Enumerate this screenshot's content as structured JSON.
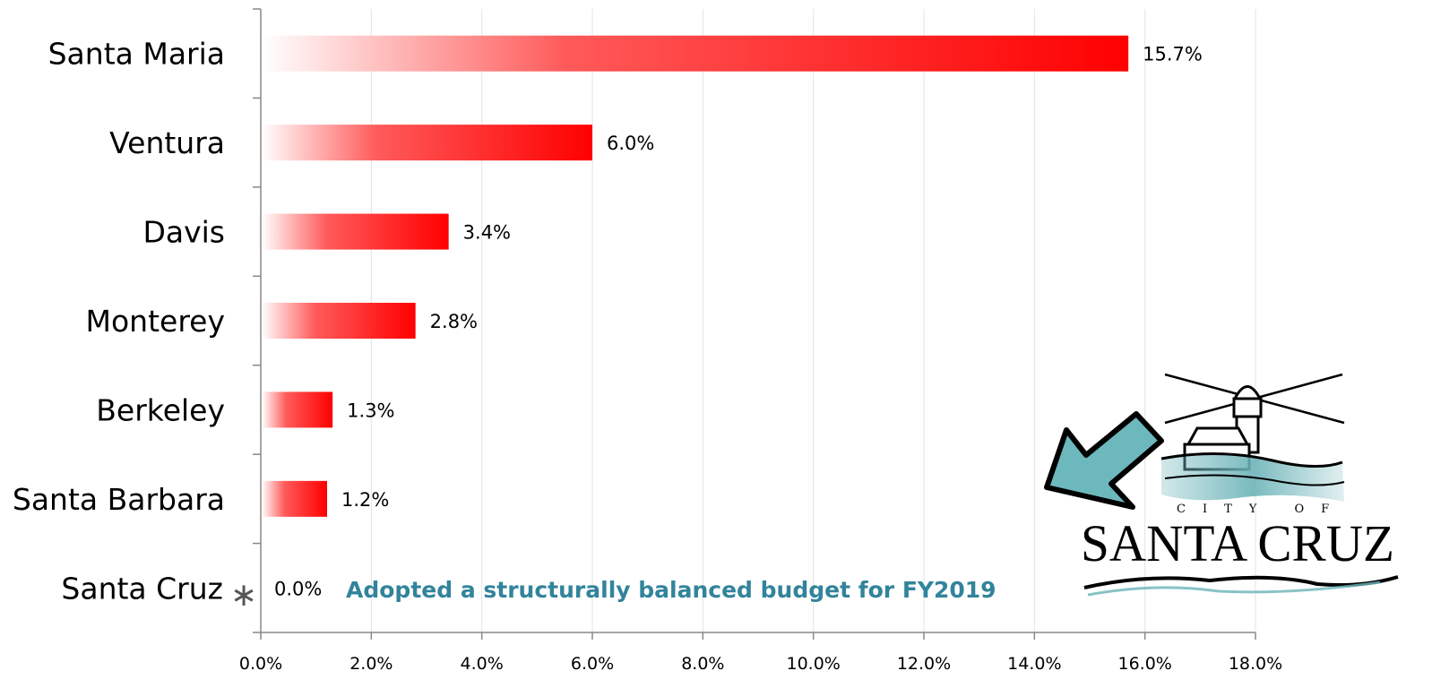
{
  "chart_data": {
    "type": "bar",
    "orientation": "horizontal",
    "categories": [
      "Santa Maria",
      "Ventura",
      "Davis",
      "Monterey",
      "Berkeley",
      "Santa Barbara",
      "Santa Cruz"
    ],
    "values": [
      15.7,
      6.0,
      3.4,
      2.8,
      1.3,
      1.2,
      0.0
    ],
    "data_labels": [
      "15.7%",
      "6.0%",
      "3.4%",
      "2.8%",
      "1.3%",
      "1.2%",
      "0.0%"
    ],
    "xlim": [
      0,
      18
    ],
    "x_ticks": [
      0,
      2,
      4,
      6,
      8,
      10,
      12,
      14,
      16,
      18
    ],
    "x_tick_labels": [
      "0.0%",
      "2.0%",
      "4.0%",
      "6.0%",
      "8.0%",
      "10.0%",
      "12.0%",
      "14.0%",
      "16.0%",
      "18.0%"
    ],
    "grid": true,
    "bar_color": "#ff0000",
    "bar_fill": "gradient",
    "title": "",
    "xlabel": "",
    "ylabel": ""
  },
  "annotation": {
    "marker": "∗",
    "text": "Adopted a structurally balanced budget for FY2019",
    "color": "#31849b"
  },
  "logo": {
    "line1": "CITY OF",
    "line2": "SANTA CRUZ",
    "water_color": "#6bb3b8"
  },
  "arrow": {
    "color": "#6cb8bd",
    "direction": "down-left"
  }
}
